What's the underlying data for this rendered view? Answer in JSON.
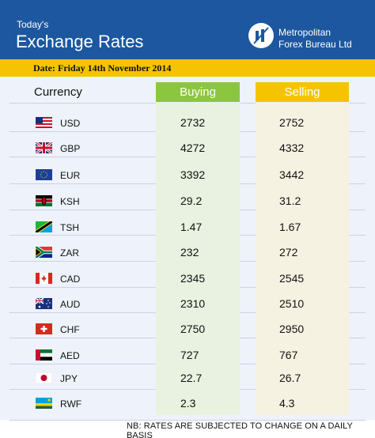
{
  "header": {
    "title_small": "Today's",
    "title_large": "Exchange Rates",
    "brand_line1": "Metropolitan",
    "brand_line2": "Forex Bureau Ltd"
  },
  "date_label": "Date: Friday 14th  November 2014",
  "columns": {
    "currency": "Currency",
    "buying": "Buying",
    "selling": "Selling"
  },
  "rows": [
    {
      "code": "USD",
      "flag": "usa-flag-icon",
      "buying": "2732",
      "selling": "2752"
    },
    {
      "code": "GBP",
      "flag": "uk-flag-icon",
      "buying": "4272",
      "selling": "4332"
    },
    {
      "code": "EUR",
      "flag": "eu-flag-icon",
      "buying": "3392",
      "selling": "3442"
    },
    {
      "code": "KSH",
      "flag": "kenya-flag-icon",
      "buying": "29.2",
      "selling": "31.2"
    },
    {
      "code": "TSH",
      "flag": "tanzania-flag-icon",
      "buying": "1.47",
      "selling": "1.67"
    },
    {
      "code": "ZAR",
      "flag": "south-africa-flag-icon",
      "buying": "232",
      "selling": "272"
    },
    {
      "code": "CAD",
      "flag": "canada-flag-icon",
      "buying": "2345",
      "selling": "2545"
    },
    {
      "code": "AUD",
      "flag": "australia-flag-icon",
      "buying": "2310",
      "selling": "2510"
    },
    {
      "code": "CHF",
      "flag": "switzerland-flag-icon",
      "buying": "2750",
      "selling": "2950"
    },
    {
      "code": "AED",
      "flag": "uae-flag-icon",
      "buying": "727",
      "selling": "767"
    },
    {
      "code": "JPY",
      "flag": "japan-flag-icon",
      "buying": "22.7",
      "selling": "26.7"
    },
    {
      "code": "RWF",
      "flag": "rwanda-flag-icon",
      "buying": "2.3",
      "selling": "4.3"
    }
  ],
  "footer_note": "NB: RATES ARE SUBJECTED TO CHANGE ON A DAILY BASIS",
  "colors": {
    "header_blue": "#1c57a0",
    "accent_yellow": "#f5c400",
    "buying_green": "#8cc63f"
  }
}
